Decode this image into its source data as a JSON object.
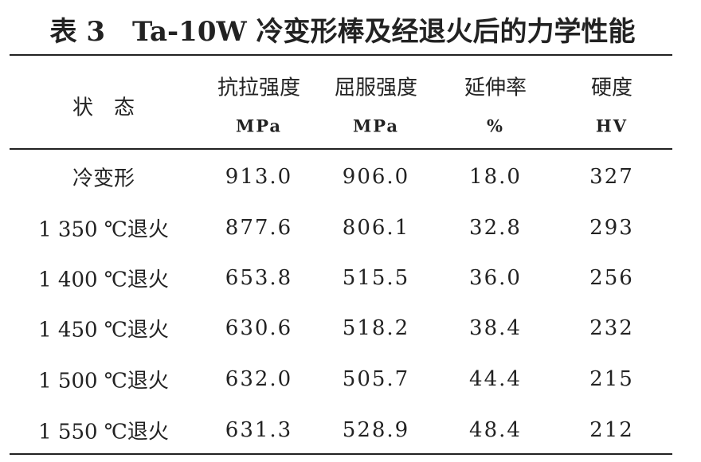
{
  "title": "表 3　Ta-10W 冷变形棒及经退火后的力学性能",
  "table": {
    "header": [
      {
        "name": "状　态"
      },
      {
        "name": "抗拉强度",
        "unit": "MPa"
      },
      {
        "name": "屈服强度",
        "unit": "MPa"
      },
      {
        "name": "延伸率",
        "unit": "%"
      },
      {
        "name": "硬度",
        "unit": "HV"
      }
    ],
    "rows": [
      [
        "冷变形",
        "913.0",
        "906.0",
        "18.0",
        "327"
      ],
      [
        "1 350 ℃退火",
        "877.6",
        "806.1",
        "32.8",
        "293"
      ],
      [
        "1 400 ℃退火",
        "653.8",
        "515.5",
        "36.0",
        "256"
      ],
      [
        "1 450 ℃退火",
        "630.6",
        "518.2",
        "38.4",
        "232"
      ],
      [
        "1 500 ℃退火",
        "632.0",
        "505.7",
        "44.4",
        "215"
      ],
      [
        "1 550 ℃退火",
        "631.3",
        "528.9",
        "48.4",
        "212"
      ]
    ]
  }
}
